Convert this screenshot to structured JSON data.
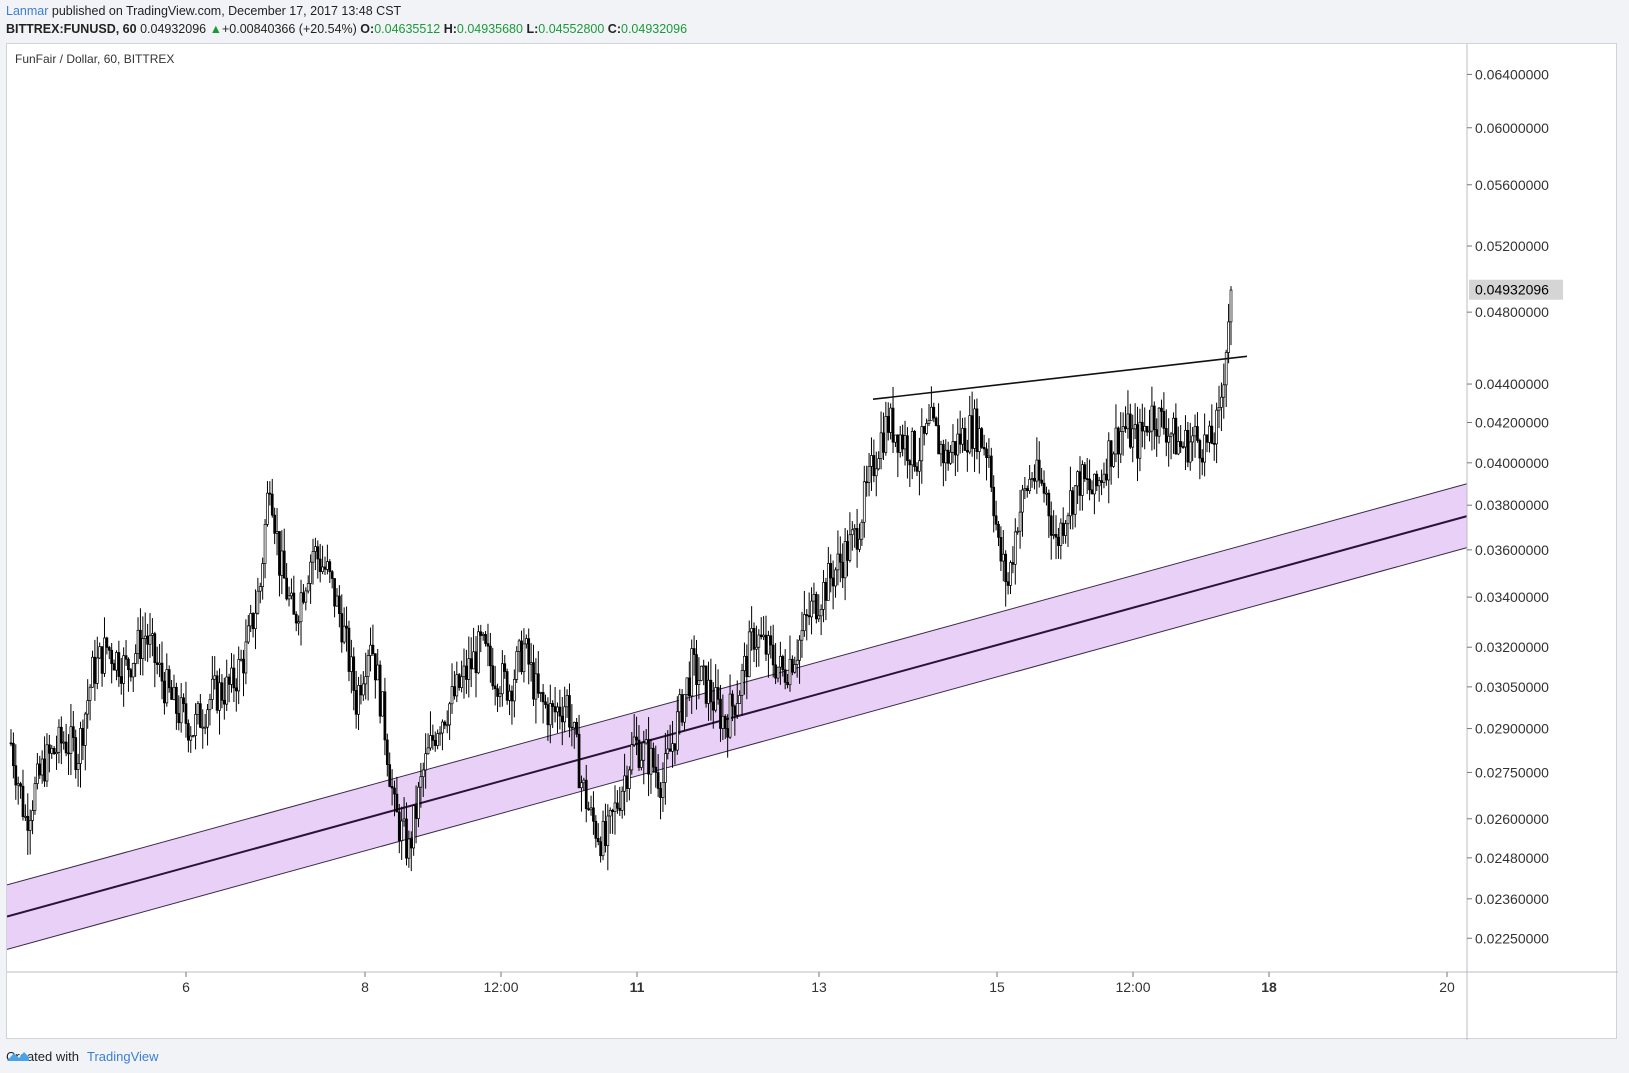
{
  "header": {
    "author": "Lanmar",
    "published": "published on TradingView.com, December 17, 2017 13:48 CST",
    "symbol": "BITTREX:FUNUSD, 60",
    "last": "0.04932096",
    "change": "+0.00840366 (+20.54%)",
    "open_label": "O:",
    "open": "0.04635512",
    "high_label": "H:",
    "high": "0.04935680",
    "low_label": "L:",
    "low": "0.04552800",
    "close_label": "C:",
    "close": "0.04932096"
  },
  "footer": {
    "created_with": "Created with",
    "brand": "TradingView"
  },
  "colors": {
    "up_candle": "#ffffff",
    "down_candle": "#000000",
    "channel_fill": "#e9d0f7",
    "last_price_bg": "#d5d5d5"
  },
  "chart_data": {
    "type": "candlestick",
    "title": "FunFair / Dollar, 60, BITTREX",
    "y_scale": "log",
    "ylim": [
      0.0216,
      0.0664
    ],
    "y_ticks": [
      "0.06400000",
      "0.06000000",
      "0.05600000",
      "0.05200000",
      "0.04800000",
      "0.04400000",
      "0.04200000",
      "0.04000000",
      "0.03800000",
      "0.03600000",
      "0.03400000",
      "0.03200000",
      "0.03050000",
      "0.02900000",
      "0.02750000",
      "0.02600000",
      "0.02480000",
      "0.02360000",
      "0.02250000"
    ],
    "x_ticks": [
      "6",
      "8",
      "12:00",
      "11",
      "13",
      "15",
      "12:00",
      "18",
      "20"
    ],
    "x_ticks_bold": [
      "11",
      "18"
    ],
    "last_price_label": "0.04932096",
    "anchors": [
      [
        0,
        0.0285
      ],
      [
        6,
        0.026
      ],
      [
        14,
        0.0278
      ],
      [
        22,
        0.0286
      ],
      [
        28,
        0.0282
      ],
      [
        34,
        0.031
      ],
      [
        40,
        0.032
      ],
      [
        48,
        0.0312
      ],
      [
        56,
        0.0325
      ],
      [
        62,
        0.031
      ],
      [
        68,
        0.0298
      ],
      [
        76,
        0.029
      ],
      [
        84,
        0.0302
      ],
      [
        92,
        0.0305
      ],
      [
        98,
        0.0318
      ],
      [
        104,
        0.0345
      ],
      [
        108,
        0.0395
      ],
      [
        112,
        0.0355
      ],
      [
        118,
        0.033
      ],
      [
        126,
        0.036
      ],
      [
        132,
        0.035
      ],
      [
        138,
        0.033
      ],
      [
        144,
        0.03
      ],
      [
        150,
        0.0325
      ],
      [
        156,
        0.029
      ],
      [
        160,
        0.0262
      ],
      [
        166,
        0.025
      ],
      [
        172,
        0.0275
      ],
      [
        178,
        0.0292
      ],
      [
        184,
        0.03
      ],
      [
        190,
        0.031
      ],
      [
        196,
        0.032
      ],
      [
        202,
        0.031
      ],
      [
        208,
        0.0305
      ],
      [
        214,
        0.032
      ],
      [
        220,
        0.03
      ],
      [
        226,
        0.0295
      ],
      [
        232,
        0.03
      ],
      [
        238,
        0.0272
      ],
      [
        242,
        0.026
      ],
      [
        248,
        0.0252
      ],
      [
        254,
        0.0268
      ],
      [
        260,
        0.0285
      ],
      [
        266,
        0.028
      ],
      [
        272,
        0.0272
      ],
      [
        278,
        0.0292
      ],
      [
        284,
        0.0312
      ],
      [
        290,
        0.0305
      ],
      [
        298,
        0.0292
      ],
      [
        304,
        0.0305
      ],
      [
        310,
        0.0325
      ],
      [
        316,
        0.0318
      ],
      [
        322,
        0.031
      ],
      [
        328,
        0.032
      ],
      [
        334,
        0.0335
      ],
      [
        340,
        0.0345
      ],
      [
        346,
        0.0355
      ],
      [
        352,
        0.0365
      ],
      [
        358,
        0.039
      ],
      [
        362,
        0.041
      ],
      [
        366,
        0.042
      ],
      [
        372,
        0.0412
      ],
      [
        378,
        0.0403
      ],
      [
        384,
        0.0418
      ],
      [
        390,
        0.0402
      ],
      [
        396,
        0.0412
      ],
      [
        402,
        0.0418
      ],
      [
        408,
        0.0405
      ],
      [
        412,
        0.036
      ],
      [
        416,
        0.0345
      ],
      [
        420,
        0.0375
      ],
      [
        426,
        0.0395
      ],
      [
        432,
        0.0385
      ],
      [
        436,
        0.0362
      ],
      [
        440,
        0.0378
      ],
      [
        446,
        0.0392
      ],
      [
        452,
        0.0385
      ],
      [
        458,
        0.0405
      ],
      [
        464,
        0.0418
      ],
      [
        470,
        0.041
      ],
      [
        476,
        0.0425
      ],
      [
        482,
        0.0418
      ],
      [
        488,
        0.0408
      ],
      [
        494,
        0.0412
      ],
      [
        500,
        0.0408
      ],
      [
        504,
        0.042
      ],
      [
        507,
        0.0462
      ],
      [
        509,
        0.0493
      ]
    ],
    "channel": {
      "center": [
        [
          0,
          0.0231
        ],
        [
          1460,
          0.0375
        ]
      ],
      "upper": [
        [
          0,
          0.024
        ],
        [
          1460,
          0.039
        ]
      ],
      "lower": [
        [
          0,
          0.0222
        ],
        [
          1460,
          0.0361
        ]
      ]
    },
    "trendline": [
      [
        866,
        0.0432
      ],
      [
        1240,
        0.0455
      ]
    ]
  }
}
